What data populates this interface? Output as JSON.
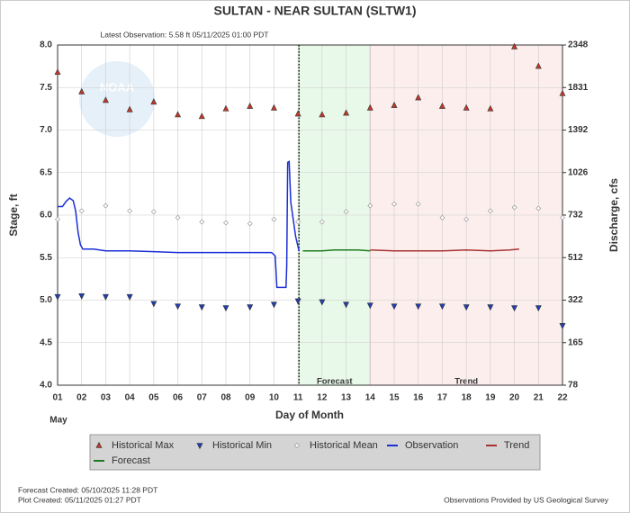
{
  "chart_data": {
    "type": "hydrograph",
    "title": "SULTAN - NEAR SULTAN  (SLTW1)",
    "subtitle": "Latest Observation: 5.58 ft 05/11/2025 01:00 PDT",
    "logo_text": "NOAA",
    "ylabel": "Stage, ft",
    "y2label": "Discharge, cfs",
    "xlabel": "Day of Month",
    "month_label": "May",
    "xlim": [
      1,
      22
    ],
    "xticks": [
      {
        "value": 1,
        "label": "01"
      },
      {
        "value": 2,
        "label": "02"
      },
      {
        "value": 3,
        "label": "03"
      },
      {
        "value": 4,
        "label": "04"
      },
      {
        "value": 5,
        "label": "05"
      },
      {
        "value": 6,
        "label": "06"
      },
      {
        "value": 7,
        "label": "07"
      },
      {
        "value": 8,
        "label": "08"
      },
      {
        "value": 9,
        "label": "09"
      },
      {
        "value": 10,
        "label": "10"
      },
      {
        "value": 11,
        "label": "11"
      },
      {
        "value": 12,
        "label": "12"
      },
      {
        "value": 13,
        "label": "13"
      },
      {
        "value": 14,
        "label": "14"
      },
      {
        "value": 15,
        "label": "15"
      },
      {
        "value": 16,
        "label": "16"
      },
      {
        "value": 17,
        "label": "17"
      },
      {
        "value": 18,
        "label": "18"
      },
      {
        "value": 19,
        "label": "19"
      },
      {
        "value": 20,
        "label": "20"
      },
      {
        "value": 21,
        "label": "21"
      },
      {
        "value": 22,
        "label": "22"
      }
    ],
    "ylim": [
      4,
      8
    ],
    "yticks": [
      {
        "value": 4,
        "label": "4.0"
      },
      4.5,
      {
        "value": 5,
        "label": "5.0"
      },
      5.5,
      {
        "value": 6,
        "label": "6.0"
      },
      6.5,
      {
        "value": 7,
        "label": "7.0"
      },
      7.5,
      {
        "value": 8,
        "label": "8.0"
      }
    ],
    "y2lim": [
      78,
      2348
    ],
    "y2ticks": [
      78,
      165,
      322,
      512,
      732,
      1026,
      1392,
      1831,
      2348
    ],
    "grid": true,
    "regions": [
      {
        "label": "Forecast",
        "x": [
          11.04,
          14
        ],
        "color": "#e9f9e9",
        "edge": "#9c9"
      },
      {
        "label": "Trend",
        "x": [
          14,
          22
        ],
        "color": "#fdeeee",
        "edge": "#d99"
      }
    ],
    "series": [
      {
        "name": "Historical Max",
        "marker": "triangle-up",
        "color": "#c0392b",
        "x": [
          1,
          2,
          3,
          4,
          5,
          6,
          7,
          8,
          9,
          10,
          11,
          12,
          13,
          14,
          15,
          16,
          17,
          18,
          19,
          20,
          21,
          22
        ],
        "values": [
          7.68,
          7.45,
          7.35,
          7.24,
          7.33,
          7.18,
          7.16,
          7.25,
          7.28,
          7.26,
          7.19,
          7.18,
          7.2,
          7.26,
          7.29,
          7.38,
          7.28,
          7.26,
          7.25,
          7.98,
          7.75,
          7.43
        ]
      },
      {
        "name": "Historical Min",
        "marker": "triangle-down",
        "color": "#1f3fb0",
        "x": [
          1,
          2,
          3,
          4,
          5,
          6,
          7,
          8,
          9,
          10,
          11,
          12,
          13,
          14,
          15,
          16,
          17,
          18,
          19,
          20,
          21,
          22
        ],
        "values": [
          5.04,
          5.05,
          5.04,
          5.04,
          4.96,
          4.93,
          4.92,
          4.91,
          4.92,
          4.95,
          4.99,
          4.98,
          4.95,
          4.94,
          4.93,
          4.93,
          4.93,
          4.92,
          4.92,
          4.91,
          4.91,
          4.7
        ]
      },
      {
        "name": "Historical Mean",
        "marker": "diamond",
        "color": "#888888",
        "x": [
          1,
          2,
          3,
          4,
          5,
          6,
          7,
          8,
          9,
          10,
          11,
          12,
          13,
          14,
          15,
          16,
          17,
          18,
          19,
          20,
          21,
          22
        ],
        "values": [
          5.95,
          6.05,
          6.11,
          6.05,
          6.04,
          5.97,
          5.92,
          5.91,
          5.9,
          5.95,
          5.92,
          5.92,
          6.04,
          6.11,
          6.13,
          6.13,
          5.97,
          5.95,
          6.05,
          6.09,
          6.08,
          5.97
        ]
      },
      {
        "name": "Observation",
        "marker": "line",
        "color": "#1a2fd6",
        "x": [
          1,
          1.2,
          1.35,
          1.5,
          1.65,
          1.75,
          1.85,
          1.95,
          2.05,
          2.5,
          3,
          4,
          5,
          6,
          7,
          8,
          9,
          9.9,
          10.05,
          10.12,
          10.5,
          10.53,
          10.57,
          10.63,
          10.7,
          10.8,
          10.9,
          11.04
        ],
        "values": [
          6.1,
          6.1,
          6.16,
          6.2,
          6.17,
          6.05,
          5.8,
          5.65,
          5.6,
          5.6,
          5.58,
          5.58,
          5.57,
          5.56,
          5.56,
          5.56,
          5.56,
          5.56,
          5.52,
          5.15,
          5.15,
          5.4,
          6.62,
          6.63,
          6.15,
          5.95,
          5.75,
          5.58
        ]
      },
      {
        "name": "Trend",
        "marker": "line",
        "color": "#a83232",
        "x": [
          14,
          15,
          16,
          17,
          18,
          19,
          19.8,
          20.2
        ],
        "values": [
          5.59,
          5.58,
          5.58,
          5.58,
          5.59,
          5.58,
          5.59,
          5.6
        ]
      },
      {
        "name": "Forecast",
        "marker": "line",
        "color": "#1f7a1f",
        "x": [
          11.2,
          12,
          12.5,
          13.5,
          14
        ],
        "values": [
          5.58,
          5.58,
          5.59,
          5.59,
          5.58
        ]
      }
    ],
    "footer_left": [
      "Forecast Created: 05/10/2025 11:28 PDT",
      "Plot Created: 05/11/2025 01:27 PDT"
    ],
    "footer_right": "Observations Provided by US Geological Survey"
  }
}
